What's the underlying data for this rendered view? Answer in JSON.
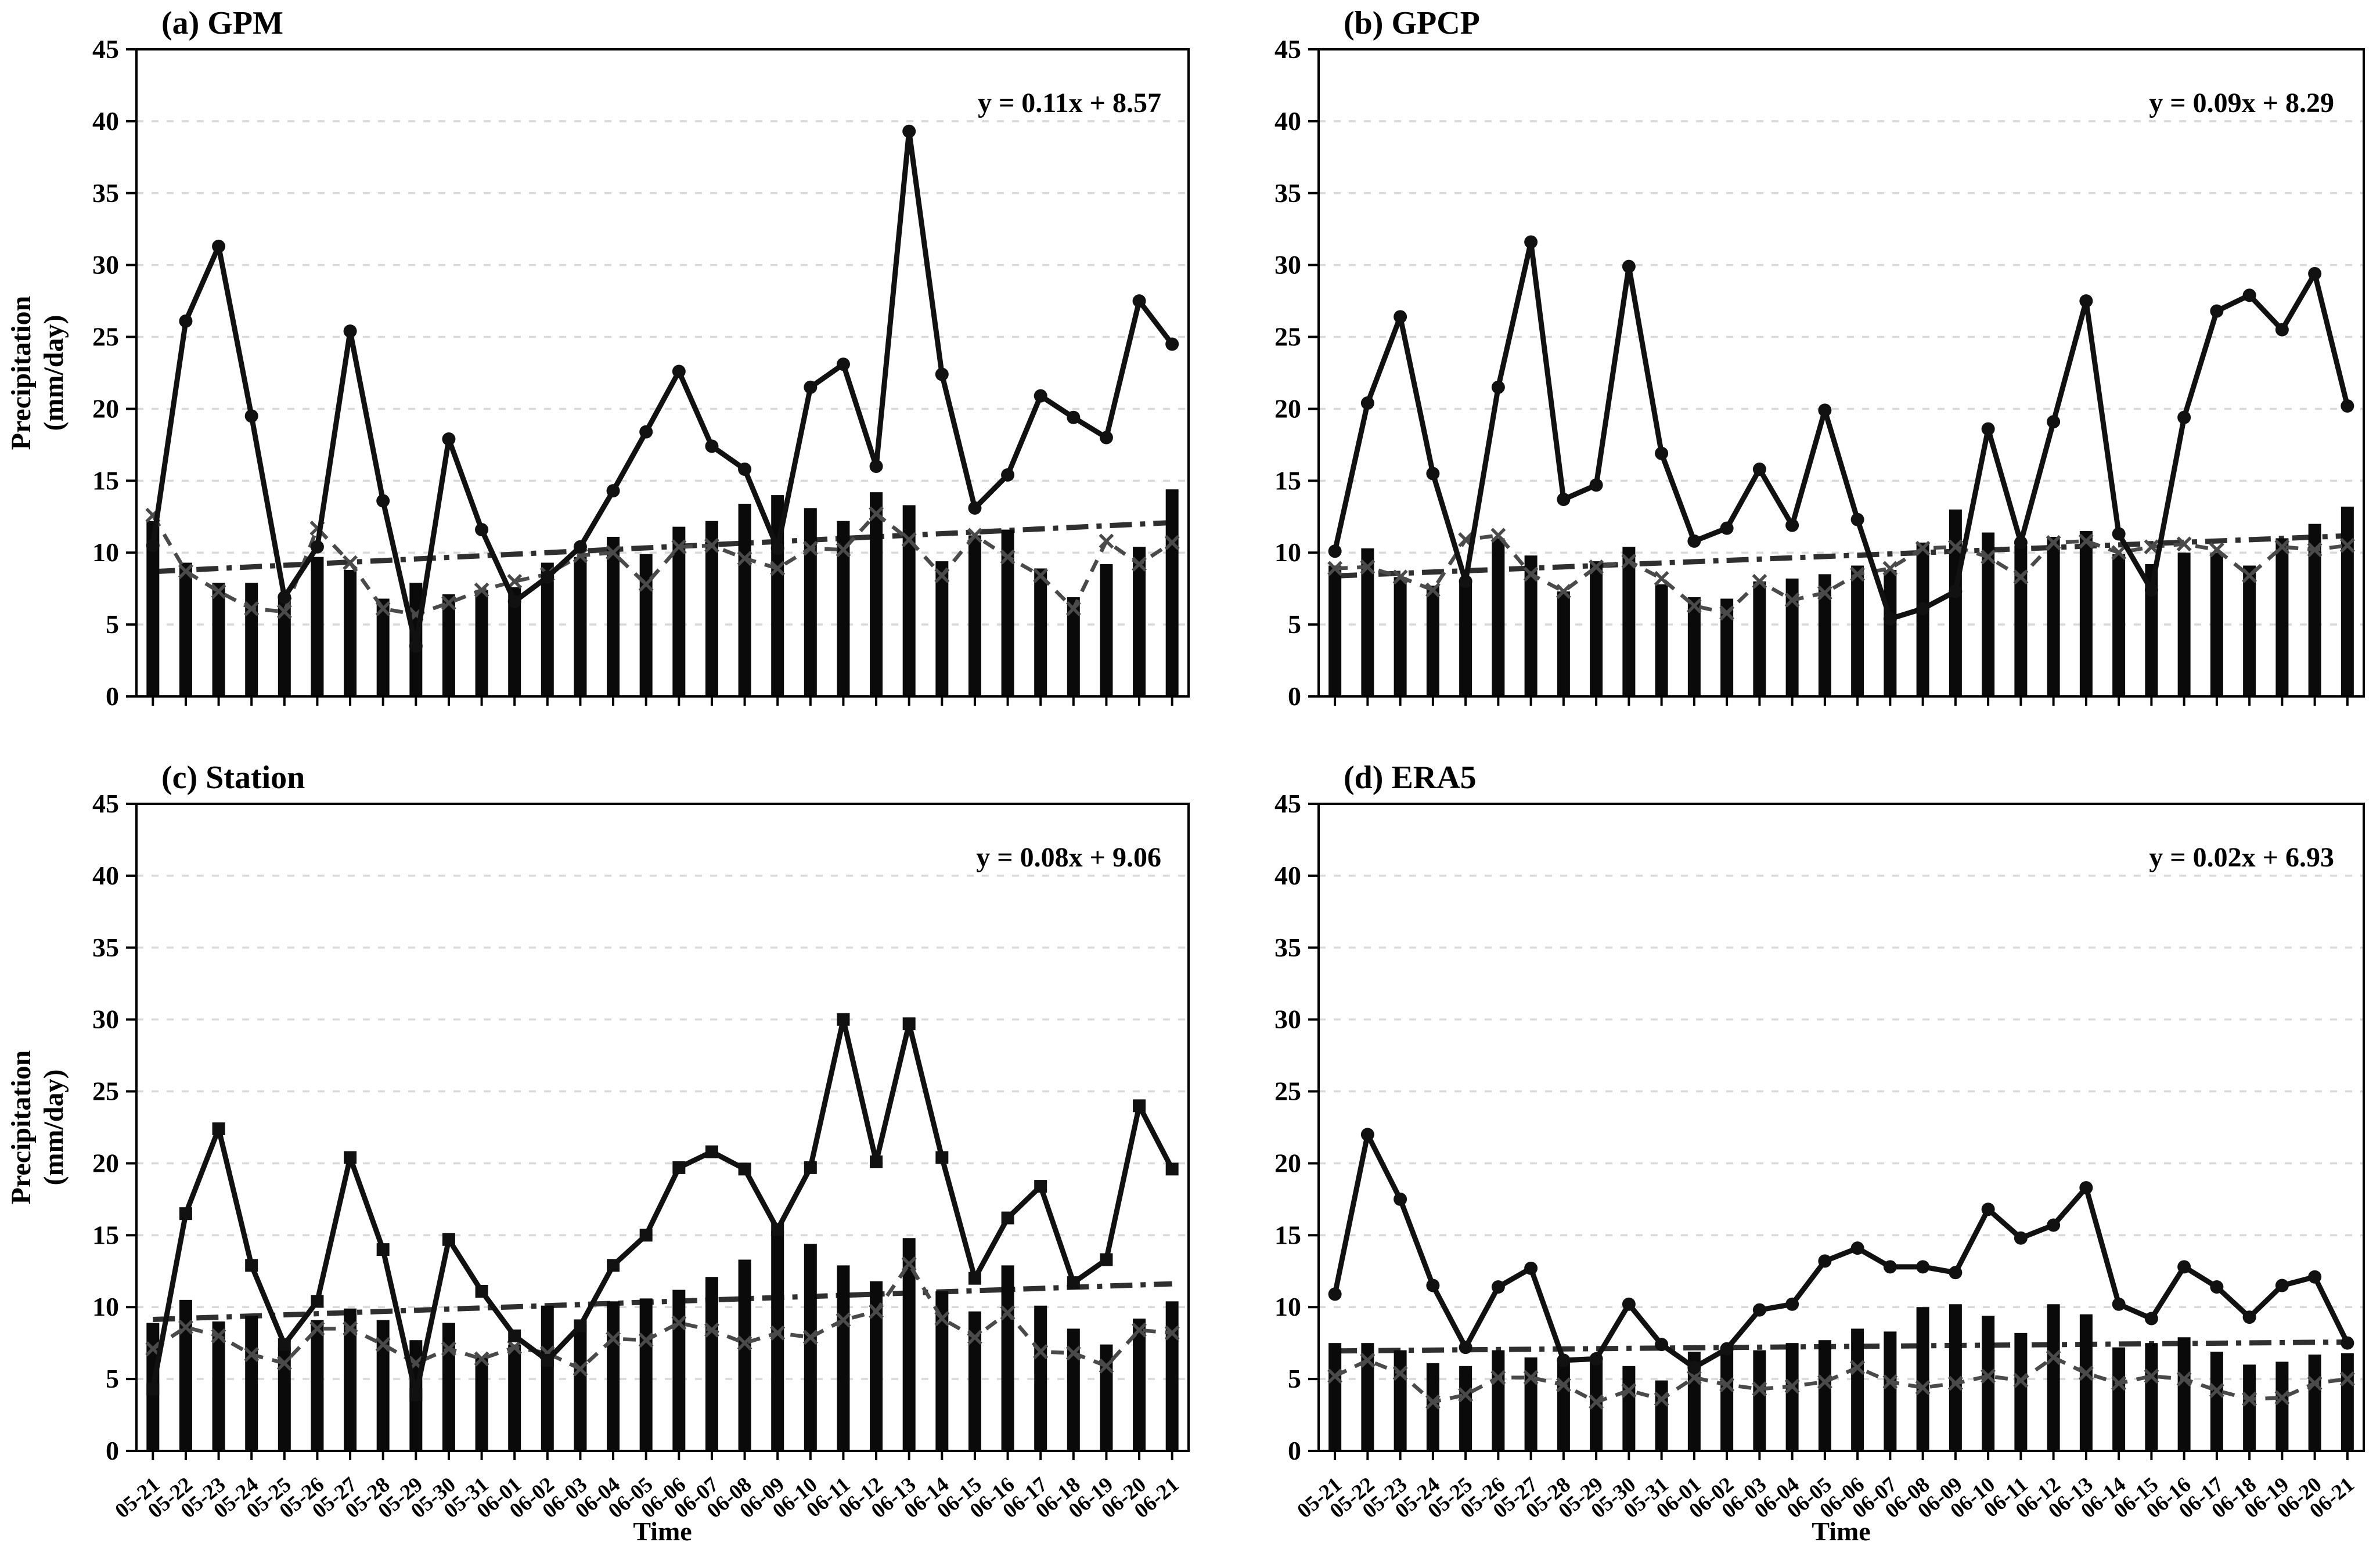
{
  "axes": {
    "ylabel_line1": "Precipitation",
    "ylabel_line2": "(mm/day)",
    "xlabel": "Time",
    "ylim": [
      0,
      45
    ],
    "ytick_step": 5,
    "grid": "horizontal-dashed"
  },
  "chart_data": {
    "type": "bar+line",
    "shared_x": [
      "05-21",
      "05-22",
      "05-23",
      "05-24",
      "05-25",
      "05-26",
      "05-27",
      "05-28",
      "05-29",
      "05-30",
      "05-31",
      "06-01",
      "06-02",
      "06-03",
      "06-04",
      "06-05",
      "06-06",
      "06-07",
      "06-08",
      "06-09",
      "06-10",
      "06-11",
      "06-12",
      "06-13",
      "06-14",
      "06-15",
      "06-16",
      "06-17",
      "06-18",
      "06-19",
      "06-20",
      "06-21"
    ],
    "panels": [
      {
        "id": "a",
        "title": "(a) GPM",
        "equation": "y = 0.11x + 8.57",
        "marker": "circle",
        "trend": {
          "slope": 0.11,
          "intercept": 8.57
        },
        "bars": [
          12.2,
          9.3,
          7.9,
          7.9,
          6.8,
          9.7,
          8.8,
          6.8,
          7.9,
          7.1,
          7.4,
          7.6,
          9.3,
          9.7,
          11.1,
          9.9,
          11.8,
          12.2,
          13.4,
          14.0,
          13.1,
          12.2,
          14.2,
          13.3,
          9.4,
          11.2,
          11.6,
          8.9,
          6.9,
          9.2,
          10.4,
          14.4
        ],
        "solid_line": [
          10.5,
          26.1,
          31.3,
          19.5,
          6.9,
          10.4,
          25.4,
          13.6,
          3.5,
          17.9,
          11.6,
          6.6,
          8.3,
          10.4,
          14.3,
          18.4,
          22.6,
          17.4,
          15.8,
          10.3,
          21.5,
          23.1,
          16.0,
          39.3,
          22.4,
          13.1,
          15.4,
          20.9,
          19.4,
          18.0,
          27.5,
          24.5
        ],
        "dashed_line": [
          12.6,
          8.7,
          7.3,
          6.1,
          5.9,
          11.7,
          9.3,
          6.1,
          5.7,
          6.5,
          7.4,
          8.0,
          8.5,
          9.8,
          10.0,
          7.8,
          10.4,
          10.5,
          9.6,
          8.9,
          10.3,
          10.2,
          12.7,
          10.9,
          8.4,
          11.2,
          9.7,
          8.4,
          6.1,
          10.8,
          9.2,
          10.7
        ]
      },
      {
        "id": "b",
        "title": "(b) GPCP",
        "equation": "y = 0.09x + 8.29",
        "marker": "circle",
        "trend": {
          "slope": 0.09,
          "intercept": 8.29
        },
        "bars": [
          9.1,
          10.3,
          8.3,
          7.7,
          8.0,
          11.0,
          9.8,
          7.3,
          9.4,
          10.4,
          7.8,
          6.9,
          6.8,
          8.0,
          8.2,
          8.5,
          9.1,
          8.8,
          10.7,
          13.0,
          11.4,
          10.5,
          11.1,
          11.5,
          9.9,
          9.2,
          10.0,
          10.0,
          9.1,
          11.0,
          12.0,
          13.2
        ],
        "solid_line": [
          10.1,
          20.4,
          26.4,
          15.5,
          8.0,
          21.5,
          31.6,
          13.7,
          14.7,
          29.9,
          16.9,
          10.8,
          11.7,
          15.8,
          11.9,
          19.9,
          12.3,
          5.4,
          6.1,
          7.3,
          18.6,
          10.7,
          19.1,
          27.5,
          11.3,
          7.4,
          19.4,
          26.8,
          27.9,
          25.5,
          29.4,
          20.2
        ],
        "dashed_line": [
          8.9,
          9.0,
          8.3,
          7.4,
          10.9,
          11.2,
          8.5,
          7.3,
          9.0,
          9.4,
          8.2,
          6.3,
          5.8,
          8.0,
          6.7,
          7.2,
          8.5,
          8.9,
          10.3,
          10.4,
          9.7,
          8.3,
          10.7,
          10.8,
          10.0,
          10.4,
          10.6,
          10.2,
          8.4,
          10.4,
          10.2,
          10.5
        ]
      },
      {
        "id": "c",
        "title": "(c) Station",
        "equation": "y = 0.08x + 9.06",
        "marker": "square",
        "trend": {
          "slope": 0.08,
          "intercept": 9.06
        },
        "bars": [
          8.9,
          10.5,
          9.0,
          9.4,
          7.2,
          9.1,
          9.9,
          9.1,
          7.7,
          8.9,
          6.5,
          7.4,
          10.1,
          8.8,
          10.4,
          10.6,
          11.2,
          12.1,
          13.3,
          15.3,
          14.4,
          12.9,
          11.8,
          14.8,
          11.1,
          9.7,
          12.9,
          10.1,
          8.5,
          7.4,
          9.2,
          10.4
        ],
        "solid_line": [
          4.3,
          16.5,
          22.4,
          12.9,
          7.4,
          10.4,
          20.4,
          14.0,
          3.9,
          14.7,
          11.1,
          8.0,
          6.3,
          8.7,
          12.9,
          15.0,
          19.7,
          20.8,
          19.6,
          15.4,
          19.7,
          30.0,
          20.1,
          29.7,
          20.4,
          12.0,
          16.2,
          18.4,
          11.7,
          13.3,
          24.0,
          19.6
        ],
        "dashed_line": [
          7.1,
          8.6,
          8.0,
          6.7,
          6.1,
          8.5,
          8.5,
          7.4,
          6.1,
          7.1,
          6.4,
          7.2,
          6.8,
          5.7,
          7.8,
          7.7,
          8.9,
          8.4,
          7.5,
          8.2,
          7.9,
          9.1,
          9.7,
          13.0,
          9.2,
          7.9,
          9.6,
          6.9,
          6.8,
          5.9,
          8.4,
          8.2
        ]
      },
      {
        "id": "d",
        "title": "(d) ERA5",
        "equation": "y = 0.02x + 6.93",
        "marker": "circle",
        "trend": {
          "slope": 0.02,
          "intercept": 6.93
        },
        "bars": [
          7.5,
          7.5,
          7.0,
          6.1,
          5.9,
          7.0,
          6.5,
          6.3,
          6.3,
          5.9,
          4.9,
          6.9,
          7.2,
          7.0,
          7.5,
          7.7,
          8.5,
          8.3,
          10.0,
          10.2,
          9.4,
          8.2,
          10.2,
          9.5,
          7.2,
          7.5,
          7.9,
          6.9,
          6.0,
          6.2,
          6.7,
          6.8
        ],
        "solid_line": [
          10.9,
          22.0,
          17.5,
          11.5,
          7.2,
          11.4,
          12.7,
          6.3,
          6.4,
          10.2,
          7.4,
          5.8,
          7.1,
          9.8,
          10.2,
          13.2,
          14.1,
          12.8,
          12.8,
          12.4,
          16.8,
          14.8,
          15.7,
          18.3,
          10.2,
          9.2,
          12.8,
          11.4,
          9.3,
          11.5,
          12.1,
          7.5
        ],
        "dashed_line": [
          5.2,
          6.3,
          5.4,
          3.4,
          3.9,
          5.1,
          5.1,
          4.6,
          3.4,
          4.2,
          3.6,
          5.1,
          4.6,
          4.3,
          4.5,
          4.8,
          5.8,
          4.8,
          4.4,
          4.7,
          5.2,
          4.9,
          6.5,
          5.4,
          4.7,
          5.2,
          5.0,
          4.2,
          3.6,
          3.7,
          4.7,
          5.0
        ]
      }
    ]
  },
  "colors": {
    "bars": "#0a0a0a",
    "solid_line": "#111111",
    "dashed_line": "#4a4a4a",
    "trend_line": "#2f2f2f",
    "grid": "#d9d9d9",
    "frame": "#000000"
  }
}
